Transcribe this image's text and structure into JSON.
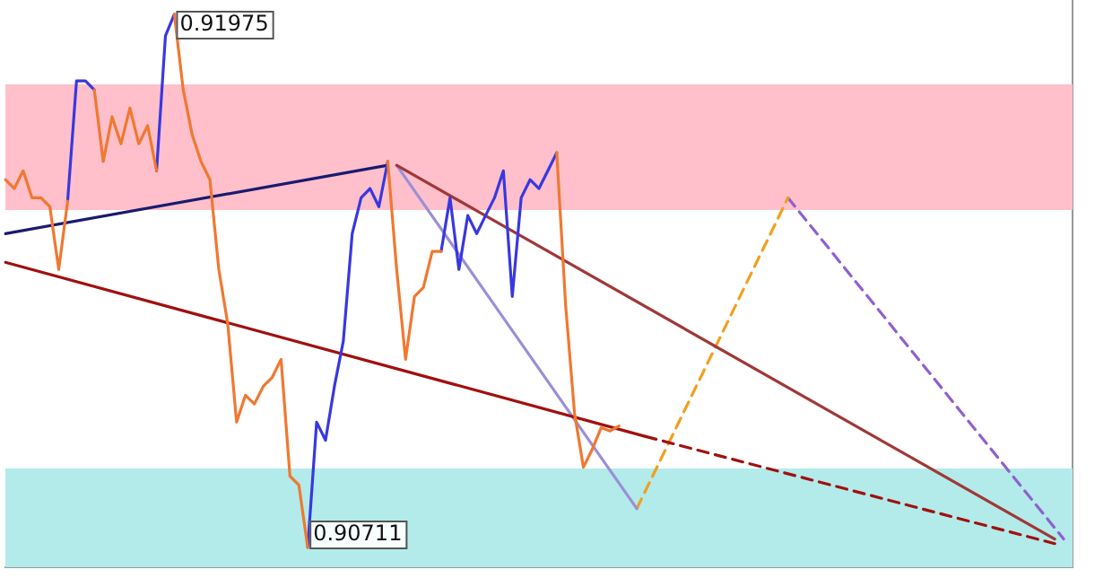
{
  "chart_data": {
    "type": "line",
    "categories": [
      null,
      null,
      null,
      null,
      null,
      null,
      null,
      null,
      null,
      null,
      null,
      null,
      null,
      null,
      null,
      null,
      null,
      null,
      null,
      null,
      null,
      null,
      null,
      null,
      null,
      null,
      null,
      null,
      null,
      null,
      null,
      null,
      null,
      null,
      null,
      null,
      null,
      null,
      null,
      null,
      null,
      null,
      null,
      null,
      null,
      null,
      null,
      null,
      null,
      null,
      null,
      null,
      null,
      null,
      null,
      null,
      null,
      null,
      null,
      null,
      null,
      null,
      null,
      null,
      null,
      null,
      null,
      null,
      null,
      null,
      null,
      null,
      null,
      null,
      null,
      null,
      null,
      null,
      null,
      null,
      null,
      null,
      null,
      null,
      null,
      null,
      null,
      null,
      null,
      null,
      null,
      null,
      null,
      null,
      null,
      null,
      null,
      null,
      null,
      null,
      null,
      null,
      null,
      null,
      null,
      null,
      null,
      null,
      null,
      null,
      null,
      null,
      null,
      null,
      null,
      null,
      null,
      null,
      null,
      null,
      null
    ],
    "ylim": [
      0.90664,
      0.92009
    ],
    "grid": false,
    "legend": false,
    "marker": "none",
    "line_style": "solid",
    "bands": [
      {
        "axis": "y",
        "from": 0.91511,
        "to": 0.91809,
        "color": "#ffc0cb"
      },
      {
        "axis": "y",
        "from": 0.90664,
        "to": 0.90898,
        "color": "#b2ebea"
      }
    ],
    "series": [
      {
        "color": "#f07830",
        "values": [
          0.91583,
          0.91562,
          0.91604,
          0.9154,
          0.9154,
          0.91519,
          0.9137,
          0.91532,
          null,
          null,
          0.91796,
          0.91626,
          0.91732,
          0.91668,
          0.91753,
          0.91668,
          0.91711,
          0.91604,
          null,
          0.91975,
          0.91796,
          0.9169,
          0.91626,
          0.91583,
          0.9137,
          0.91242,
          0.91008,
          0.91072,
          0.91051,
          0.91093,
          0.91114,
          0.91157,
          0.9088,
          0.90859,
          0.90711,
          null,
          null,
          null,
          null,
          null,
          null,
          null,
          null,
          0.91626,
          0.9137,
          0.91157,
          0.91306,
          0.91327,
          0.91413,
          0.91413,
          null,
          null,
          null,
          null,
          null,
          null,
          null,
          null,
          null,
          null,
          null,
          null,
          0.91647,
          0.91285,
          0.91029,
          0.90901,
          0.90944,
          0.90995,
          0.90987,
          0.90999,
          null,
          null,
          null,
          null,
          null,
          null,
          null,
          null,
          null,
          null,
          null,
          null,
          null,
          null,
          null,
          null,
          null,
          null,
          null,
          null,
          null,
          null,
          null,
          null,
          null,
          null,
          null,
          null,
          null,
          null,
          null,
          null,
          null,
          null,
          null,
          null,
          null,
          null,
          null,
          null,
          null,
          null,
          null,
          null,
          null,
          null,
          null,
          null,
          null,
          null,
          null
        ],
        "value_labels": [
          null,
          null,
          null,
          null,
          null,
          null,
          null,
          null,
          null,
          null,
          null,
          null,
          null,
          null,
          null,
          null,
          null,
          null,
          null,
          null,
          null,
          null,
          null,
          null,
          null,
          null,
          null,
          null,
          null,
          null,
          null,
          null,
          null,
          null,
          "0.90711",
          null,
          null,
          null,
          null,
          null,
          null,
          null,
          null,
          null,
          null,
          null,
          null,
          null,
          null,
          null,
          null,
          null,
          null,
          null,
          null,
          null,
          null,
          null,
          null,
          null,
          null,
          null,
          null,
          null,
          null,
          null,
          null,
          null,
          null,
          null,
          null,
          null,
          null,
          null,
          null,
          null,
          null,
          null,
          null,
          null,
          null,
          null,
          null,
          null,
          null,
          null,
          null,
          null,
          null,
          null,
          null,
          null,
          null,
          null,
          null,
          null,
          null,
          null,
          null,
          null,
          null,
          null,
          null,
          null,
          null,
          null,
          null,
          null,
          null,
          null,
          null,
          null,
          null,
          null,
          null,
          null,
          null,
          null,
          null,
          null,
          null
        ]
      },
      {
        "color": "#3838e0",
        "values": [
          null,
          null,
          null,
          null,
          null,
          null,
          null,
          0.91532,
          0.91817,
          0.91817,
          0.91796,
          null,
          null,
          null,
          null,
          null,
          null,
          0.91604,
          0.91924,
          0.91975,
          null,
          null,
          null,
          null,
          null,
          null,
          null,
          null,
          null,
          null,
          null,
          null,
          null,
          null,
          0.90711,
          0.91008,
          0.90965,
          0.91093,
          0.912,
          0.91455,
          0.9154,
          0.91562,
          0.91519,
          0.91626,
          null,
          null,
          null,
          null,
          null,
          0.91413,
          0.9154,
          0.9137,
          0.91498,
          0.91455,
          0.91498,
          0.9154,
          0.91604,
          0.91306,
          0.9154,
          0.91583,
          0.91562,
          0.91604,
          0.91647,
          null,
          null,
          null,
          null,
          null,
          null,
          null,
          null,
          null,
          null,
          null,
          null,
          null,
          null,
          null,
          null,
          null,
          null,
          null,
          null,
          null,
          null,
          null,
          null,
          null,
          null,
          null,
          null,
          null,
          null,
          null,
          null,
          null,
          null,
          null,
          null,
          null,
          null,
          null,
          null,
          null,
          null,
          null,
          null,
          null,
          null,
          null,
          null,
          null,
          null,
          null,
          null,
          null,
          null,
          null,
          null,
          null,
          null
        ],
        "value_labels": [
          null,
          null,
          null,
          null,
          null,
          null,
          null,
          null,
          null,
          null,
          null,
          null,
          null,
          null,
          null,
          null,
          null,
          null,
          null,
          "0.91975",
          null,
          null,
          null,
          null,
          null,
          null,
          null,
          null,
          null,
          null,
          null,
          null,
          null,
          null,
          null,
          null,
          null,
          null,
          null,
          null,
          null,
          null,
          null,
          null,
          null,
          null,
          null,
          null,
          null,
          null,
          null,
          null,
          null,
          null,
          null,
          null,
          null,
          null,
          null,
          null,
          null,
          null,
          null,
          null,
          null,
          null,
          null,
          null,
          null,
          null,
          null,
          null,
          null,
          null,
          null,
          null,
          null,
          null,
          null,
          null,
          null,
          null,
          null,
          null,
          null,
          null,
          null,
          null,
          null,
          null,
          null,
          null,
          null,
          null,
          null,
          null,
          null,
          null,
          null,
          null,
          null,
          null,
          null,
          null,
          null,
          null,
          null,
          null,
          null,
          null,
          null,
          null,
          null,
          null,
          null,
          null,
          null,
          null,
          null,
          null,
          null
        ]
      },
      {
        "color": "#1a1a70",
        "values": [
          0.91455,
          null,
          null,
          null,
          null,
          null,
          null,
          null,
          null,
          null,
          null,
          null,
          null,
          null,
          null,
          null,
          null,
          null,
          null,
          null,
          null,
          null,
          null,
          null,
          null,
          null,
          null,
          null,
          null,
          null,
          null,
          null,
          null,
          null,
          null,
          null,
          null,
          null,
          null,
          null,
          null,
          null,
          null,
          0.91617,
          null,
          null,
          null,
          null,
          null,
          null,
          null,
          null,
          null,
          null,
          null,
          null,
          null,
          null,
          null,
          null,
          null,
          null,
          null,
          null,
          null,
          null,
          null,
          null,
          null,
          null,
          null,
          null,
          null,
          null,
          null,
          null,
          null,
          null,
          null,
          null,
          null,
          null,
          null,
          null,
          null,
          null,
          null,
          null,
          null,
          null,
          null,
          null,
          null,
          null,
          null,
          null,
          null,
          null,
          null,
          null,
          null,
          null,
          null,
          null,
          null,
          null,
          null,
          null,
          null,
          null,
          null,
          null,
          null,
          null,
          null,
          null,
          null,
          null,
          null,
          null,
          null
        ]
      },
      {
        "color": "#a01010",
        "values": [
          0.91387,
          null,
          null,
          null,
          null,
          null,
          null,
          null,
          null,
          null,
          null,
          null,
          null,
          null,
          null,
          null,
          null,
          null,
          null,
          null,
          null,
          null,
          null,
          null,
          null,
          null,
          null,
          null,
          null,
          null,
          null,
          null,
          null,
          null,
          null,
          null,
          null,
          null,
          null,
          null,
          null,
          null,
          null,
          null,
          null,
          null,
          null,
          null,
          null,
          null,
          null,
          null,
          null,
          null,
          null,
          null,
          null,
          null,
          null,
          null,
          null,
          null,
          null,
          null,
          null,
          null,
          null,
          null,
          null,
          null,
          null,
          null,
          0.90974,
          null,
          null,
          null,
          null,
          null,
          null,
          null,
          null,
          null,
          null,
          null,
          null,
          null,
          null,
          null,
          null,
          null,
          null,
          null,
          null,
          null,
          null,
          null,
          null,
          null,
          null,
          null,
          null,
          null,
          null,
          null,
          null,
          null,
          null,
          null,
          null,
          null,
          null,
          null,
          null,
          null,
          null,
          null,
          null,
          null,
          null,
          null,
          null
        ]
      },
      {
        "color": "#a01010",
        "line_style": "dashed",
        "values": [
          null,
          null,
          null,
          null,
          null,
          null,
          null,
          null,
          null,
          null,
          null,
          null,
          null,
          null,
          null,
          null,
          null,
          null,
          null,
          null,
          null,
          null,
          null,
          null,
          null,
          null,
          null,
          null,
          null,
          null,
          null,
          null,
          null,
          null,
          null,
          null,
          null,
          null,
          null,
          null,
          null,
          null,
          null,
          null,
          null,
          null,
          null,
          null,
          null,
          null,
          null,
          null,
          null,
          null,
          null,
          null,
          null,
          null,
          null,
          null,
          null,
          null,
          null,
          null,
          null,
          null,
          null,
          null,
          null,
          null,
          null,
          null,
          0.90974,
          null,
          null,
          null,
          null,
          null,
          null,
          null,
          null,
          null,
          null,
          null,
          null,
          null,
          null,
          null,
          null,
          null,
          null,
          null,
          null,
          null,
          null,
          null,
          null,
          null,
          null,
          null,
          null,
          null,
          null,
          null,
          null,
          null,
          null,
          null,
          null,
          null,
          null,
          null,
          null,
          null,
          null,
          null,
          null,
          null,
          0.9072,
          null,
          null
        ]
      },
      {
        "color": "#a03838",
        "values": [
          null,
          null,
          null,
          null,
          null,
          null,
          null,
          null,
          null,
          null,
          null,
          null,
          null,
          null,
          null,
          null,
          null,
          null,
          null,
          null,
          null,
          null,
          null,
          null,
          null,
          null,
          null,
          null,
          null,
          null,
          null,
          null,
          null,
          null,
          null,
          null,
          null,
          null,
          null,
          null,
          null,
          null,
          null,
          null,
          0.91617,
          null,
          null,
          null,
          null,
          null,
          null,
          null,
          null,
          null,
          null,
          null,
          null,
          null,
          null,
          null,
          null,
          null,
          null,
          null,
          null,
          null,
          null,
          null,
          null,
          null,
          null,
          null,
          null,
          null,
          null,
          null,
          null,
          null,
          null,
          null,
          null,
          null,
          null,
          null,
          null,
          null,
          null,
          null,
          null,
          null,
          null,
          null,
          null,
          null,
          null,
          null,
          null,
          null,
          null,
          null,
          null,
          null,
          null,
          null,
          null,
          null,
          null,
          null,
          null,
          null,
          null,
          null,
          null,
          null,
          null,
          null,
          null,
          null,
          0.90731,
          null,
          null
        ]
      },
      {
        "color": "#9b8fd8",
        "values": [
          null,
          null,
          null,
          null,
          null,
          null,
          null,
          null,
          null,
          null,
          null,
          null,
          null,
          null,
          null,
          null,
          null,
          null,
          null,
          null,
          null,
          null,
          null,
          null,
          null,
          null,
          null,
          null,
          null,
          null,
          null,
          null,
          null,
          null,
          null,
          null,
          null,
          null,
          null,
          null,
          null,
          null,
          null,
          null,
          0.91617,
          null,
          null,
          null,
          null,
          null,
          null,
          null,
          null,
          null,
          null,
          null,
          null,
          null,
          null,
          null,
          null,
          null,
          null,
          null,
          null,
          null,
          null,
          null,
          null,
          null,
          null,
          0.90803,
          null,
          null,
          null,
          null,
          null,
          null,
          null,
          null,
          null,
          null,
          null,
          null,
          null,
          null,
          null,
          null,
          null,
          null,
          null,
          null,
          null,
          null,
          null,
          null,
          null,
          null,
          null,
          null,
          null,
          null,
          null,
          null,
          null,
          null,
          null,
          null,
          null,
          null,
          null,
          null,
          null,
          null,
          null,
          null,
          null,
          null,
          null,
          null,
          null
        ]
      },
      {
        "color": "#f0a020",
        "line_style": "dashed",
        "values": [
          null,
          null,
          null,
          null,
          null,
          null,
          null,
          null,
          null,
          null,
          null,
          null,
          null,
          null,
          null,
          null,
          null,
          null,
          null,
          null,
          null,
          null,
          null,
          null,
          null,
          null,
          null,
          null,
          null,
          null,
          null,
          null,
          null,
          null,
          null,
          null,
          null,
          null,
          null,
          null,
          null,
          null,
          null,
          null,
          null,
          null,
          null,
          null,
          null,
          null,
          null,
          null,
          null,
          null,
          null,
          null,
          null,
          null,
          null,
          null,
          null,
          null,
          null,
          null,
          null,
          null,
          null,
          null,
          null,
          null,
          null,
          0.90803,
          null,
          null,
          null,
          null,
          null,
          null,
          null,
          null,
          null,
          null,
          null,
          null,
          null,
          null,
          null,
          null,
          0.9154,
          null,
          null,
          null,
          null,
          null,
          null,
          null,
          null,
          null,
          null,
          null,
          null,
          null,
          null,
          null,
          null,
          null,
          null,
          null,
          null,
          null,
          null,
          null,
          null,
          null,
          null,
          null,
          null,
          null,
          null,
          null,
          null
        ]
      },
      {
        "color": "#9060d0",
        "line_style": "dashed",
        "values": [
          null,
          null,
          null,
          null,
          null,
          null,
          null,
          null,
          null,
          null,
          null,
          null,
          null,
          null,
          null,
          null,
          null,
          null,
          null,
          null,
          null,
          null,
          null,
          null,
          null,
          null,
          null,
          null,
          null,
          null,
          null,
          null,
          null,
          null,
          null,
          null,
          null,
          null,
          null,
          null,
          null,
          null,
          null,
          null,
          null,
          null,
          null,
          null,
          null,
          null,
          null,
          null,
          null,
          null,
          null,
          null,
          null,
          null,
          null,
          null,
          null,
          null,
          null,
          null,
          null,
          null,
          null,
          null,
          null,
          null,
          null,
          null,
          null,
          null,
          null,
          null,
          null,
          null,
          null,
          null,
          null,
          null,
          null,
          null,
          null,
          null,
          null,
          null,
          0.9154,
          null,
          null,
          null,
          null,
          null,
          null,
          null,
          null,
          null,
          null,
          null,
          null,
          null,
          null,
          null,
          null,
          null,
          null,
          null,
          null,
          null,
          null,
          null,
          null,
          null,
          null,
          null,
          null,
          null,
          null,
          0.90731,
          null
        ]
      }
    ]
  }
}
